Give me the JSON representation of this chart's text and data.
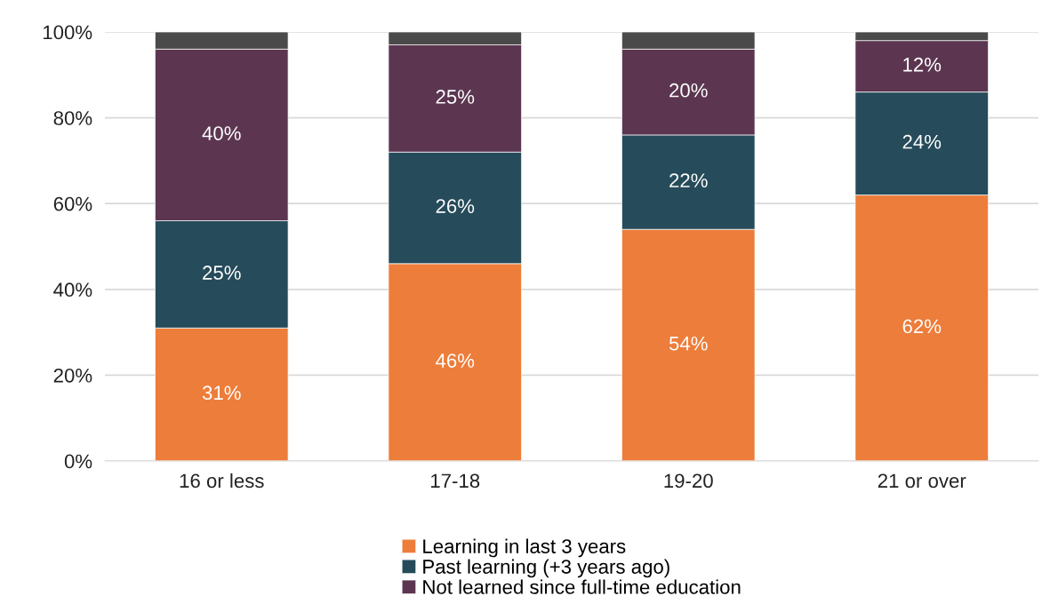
{
  "chart_data": {
    "type": "bar",
    "stacked": true,
    "categories": [
      "16 or less",
      "17-18",
      "19-20",
      "21 or over"
    ],
    "series": [
      {
        "name": "Learning in last 3 years",
        "color": "#ed7d3a",
        "values": [
          31,
          46,
          54,
          62
        ],
        "value_labels": [
          "31%",
          "46%",
          "54%",
          "62%"
        ]
      },
      {
        "name": "Past learning (+3 years ago)",
        "color": "#264b5a",
        "values": [
          25,
          26,
          22,
          24
        ],
        "value_labels": [
          "25%",
          "26%",
          "22%",
          "24%"
        ]
      },
      {
        "name": "Not learned since full-time education",
        "color": "#5c3651",
        "values": [
          40,
          25,
          20,
          12
        ],
        "value_labels": [
          "40%",
          "25%",
          "20%",
          "12%"
        ]
      },
      {
        "color": "#4a4a4a",
        "values": [
          4,
          3,
          4,
          2
        ]
      }
    ],
    "ylim": [
      0,
      100
    ],
    "yticks": [
      {
        "value": 0,
        "label": "0%"
      },
      {
        "value": 20,
        "label": "20%"
      },
      {
        "value": 40,
        "label": "40%"
      },
      {
        "value": 60,
        "label": "60%"
      },
      {
        "value": 80,
        "label": "80%"
      },
      {
        "value": 100,
        "label": "100%"
      }
    ],
    "grid": "y",
    "legend": "bottom"
  }
}
